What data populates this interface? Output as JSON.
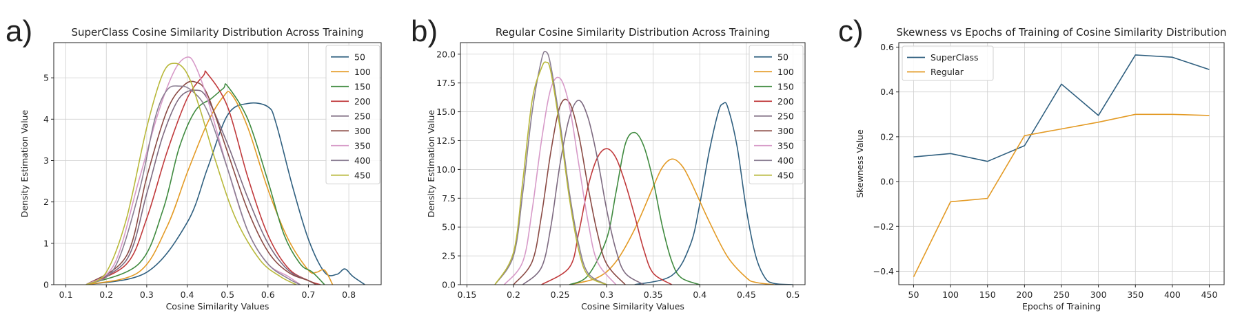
{
  "colors": {
    "c50": "#2f5f7f",
    "c100": "#e39a24",
    "c150": "#3f8a3f",
    "c200": "#c0393b",
    "c250": "#7d6a80",
    "c300": "#8a4a44",
    "c350": "#d79ac8",
    "c400": "#8a7e92",
    "c450": "#b8b83a"
  },
  "chart_data": [
    {
      "panel": "a)",
      "type": "line",
      "title": "SuperClass Cosine Similarity Distribution Across Training",
      "xlabel": "Cosine Similarity Values",
      "ylabel": "Density Estimation Value",
      "xlim": [
        0.07,
        0.88
      ],
      "ylim": [
        0,
        5.85
      ],
      "xticks": [
        0.1,
        0.2,
        0.3,
        0.4,
        0.5,
        0.6,
        0.7,
        0.8
      ],
      "yticks": [
        0,
        1,
        2,
        3,
        4,
        5
      ],
      "grid": true,
      "legend": "top-right",
      "series": [
        {
          "name": "50",
          "color_key": "c50",
          "x": [
            0.15,
            0.3,
            0.4,
            0.45,
            0.5,
            0.55,
            0.6,
            0.62,
            0.66,
            0.7,
            0.74,
            0.77,
            0.79,
            0.81,
            0.84
          ],
          "y": [
            0,
            0.3,
            1.5,
            2.8,
            4.1,
            4.38,
            4.3,
            3.9,
            2.4,
            1.1,
            0.3,
            0.25,
            0.38,
            0.2,
            0
          ]
        },
        {
          "name": "100",
          "color_key": "c100",
          "x": [
            0.15,
            0.28,
            0.35,
            0.4,
            0.45,
            0.49,
            0.51,
            0.55,
            0.6,
            0.65,
            0.7,
            0.72,
            0.74,
            0.76
          ],
          "y": [
            0,
            0.3,
            1.4,
            2.7,
            3.9,
            4.55,
            4.6,
            3.8,
            2.3,
            1.1,
            0.35,
            0.3,
            0.35,
            0
          ]
        },
        {
          "name": "150",
          "color_key": "c150",
          "x": [
            0.15,
            0.28,
            0.34,
            0.38,
            0.42,
            0.46,
            0.49,
            0.5,
            0.55,
            0.6,
            0.64,
            0.68,
            0.71,
            0.74
          ],
          "y": [
            0,
            0.5,
            1.8,
            3.3,
            4.2,
            4.5,
            4.75,
            4.8,
            4.0,
            2.5,
            1.2,
            0.5,
            0.3,
            0
          ]
        },
        {
          "name": "200",
          "color_key": "c200",
          "x": [
            0.15,
            0.25,
            0.3,
            0.35,
            0.4,
            0.44,
            0.45,
            0.5,
            0.55,
            0.6,
            0.65,
            0.7,
            0.73
          ],
          "y": [
            0,
            0.5,
            1.6,
            3.2,
            4.5,
            5.05,
            5.1,
            4.3,
            2.6,
            1.2,
            0.4,
            0.1,
            0
          ]
        },
        {
          "name": "250",
          "color_key": "c250",
          "x": [
            0.15,
            0.25,
            0.3,
            0.34,
            0.38,
            0.42,
            0.45,
            0.5,
            0.55,
            0.6,
            0.65,
            0.7,
            0.72
          ],
          "y": [
            0,
            0.6,
            2.2,
            3.6,
            4.5,
            4.7,
            4.5,
            3.4,
            2.1,
            1.0,
            0.35,
            0.1,
            0
          ]
        },
        {
          "name": "300",
          "color_key": "c300",
          "x": [
            0.15,
            0.25,
            0.3,
            0.35,
            0.39,
            0.42,
            0.45,
            0.5,
            0.55,
            0.6,
            0.65,
            0.7,
            0.72
          ],
          "y": [
            0,
            0.7,
            2.6,
            4.2,
            4.8,
            4.9,
            4.6,
            3.2,
            1.8,
            0.8,
            0.3,
            0.1,
            0
          ]
        },
        {
          "name": "350",
          "color_key": "c350",
          "x": [
            0.15,
            0.22,
            0.28,
            0.33,
            0.37,
            0.4,
            0.42,
            0.45,
            0.5,
            0.55,
            0.6,
            0.65,
            0.68
          ],
          "y": [
            0,
            0.5,
            2.5,
            4.2,
            5.2,
            5.5,
            5.3,
            4.5,
            2.8,
            1.3,
            0.5,
            0.2,
            0
          ]
        },
        {
          "name": "400",
          "color_key": "c400",
          "x": [
            0.15,
            0.22,
            0.28,
            0.32,
            0.35,
            0.38,
            0.41,
            0.45,
            0.5,
            0.55,
            0.6,
            0.65,
            0.68
          ],
          "y": [
            0,
            0.4,
            2.2,
            4.0,
            4.7,
            4.8,
            4.7,
            4.2,
            2.8,
            1.3,
            0.5,
            0.15,
            0
          ]
        },
        {
          "name": "450",
          "color_key": "c450",
          "x": [
            0.15,
            0.2,
            0.25,
            0.3,
            0.34,
            0.37,
            0.4,
            0.43,
            0.47,
            0.52,
            0.58,
            0.63,
            0.67
          ],
          "y": [
            0,
            0.3,
            1.6,
            3.8,
            5.1,
            5.35,
            5.1,
            4.3,
            3.0,
            1.6,
            0.6,
            0.2,
            0
          ]
        }
      ]
    },
    {
      "panel": "b)",
      "type": "line",
      "title": "Regular Cosine Similarity Distribution Across Training",
      "xlabel": "Cosine Similarity Values",
      "ylabel": "Density Estimation Value",
      "xlim": [
        0.143,
        0.513
      ],
      "ylim": [
        0,
        21
      ],
      "xticks": [
        0.15,
        0.2,
        0.25,
        0.3,
        0.35,
        0.4,
        0.45,
        0.5
      ],
      "yticks": [
        0.0,
        2.5,
        5.0,
        7.5,
        10.0,
        12.5,
        15.0,
        17.5,
        20.0
      ],
      "ytick_labels": [
        "0.0",
        "2.5",
        "5.0",
        "7.5",
        "10.0",
        "12.5",
        "15.0",
        "17.5",
        "20.0"
      ],
      "grid": true,
      "legend": "top-right",
      "series": [
        {
          "name": "50",
          "color_key": "c50",
          "x": [
            0.33,
            0.37,
            0.39,
            0.4,
            0.41,
            0.42,
            0.425,
            0.43,
            0.44,
            0.45,
            0.46,
            0.47,
            0.48,
            0.5
          ],
          "y": [
            0,
            0.8,
            3.5,
            7.0,
            11.5,
            15.0,
            15.7,
            15.4,
            12.0,
            6.5,
            2.5,
            0.6,
            0.1,
            0
          ]
        },
        {
          "name": "100",
          "color_key": "c100",
          "x": [
            0.26,
            0.29,
            0.31,
            0.33,
            0.35,
            0.36,
            0.37,
            0.38,
            0.39,
            0.41,
            0.43,
            0.45,
            0.46,
            0.48
          ],
          "y": [
            0,
            0.6,
            2.0,
            4.8,
            8.5,
            10.2,
            10.9,
            10.4,
            9.0,
            5.5,
            2.4,
            0.6,
            0.2,
            0
          ]
        },
        {
          "name": "150",
          "color_key": "c150",
          "x": [
            0.26,
            0.28,
            0.3,
            0.31,
            0.32,
            0.33,
            0.34,
            0.35,
            0.36,
            0.37,
            0.38,
            0.4
          ],
          "y": [
            0,
            0.8,
            4.0,
            8.0,
            12.2,
            13.2,
            12.0,
            9.0,
            5.0,
            2.0,
            0.6,
            0
          ]
        },
        {
          "name": "200",
          "color_key": "c200",
          "x": [
            0.23,
            0.26,
            0.27,
            0.28,
            0.29,
            0.3,
            0.31,
            0.32,
            0.33,
            0.34,
            0.35,
            0.37
          ],
          "y": [
            0,
            1.5,
            4.5,
            8.5,
            11.0,
            11.8,
            11.0,
            8.8,
            6.0,
            3.0,
            1.0,
            0
          ]
        },
        {
          "name": "250",
          "color_key": "c250",
          "x": [
            0.21,
            0.23,
            0.24,
            0.25,
            0.26,
            0.27,
            0.28,
            0.29,
            0.3,
            0.31,
            0.32,
            0.34
          ],
          "y": [
            0,
            1.5,
            5.0,
            10.5,
            14.5,
            16.0,
            14.5,
            11.0,
            6.5,
            3.0,
            1.0,
            0
          ]
        },
        {
          "name": "300",
          "color_key": "c300",
          "x": [
            0.2,
            0.22,
            0.23,
            0.24,
            0.25,
            0.26,
            0.27,
            0.28,
            0.29,
            0.3,
            0.32
          ],
          "y": [
            0,
            2.0,
            6.0,
            11.5,
            15.5,
            15.8,
            13.0,
            8.5,
            4.5,
            1.8,
            0
          ]
        },
        {
          "name": "350",
          "color_key": "c350",
          "x": [
            0.19,
            0.21,
            0.22,
            0.23,
            0.24,
            0.25,
            0.26,
            0.27,
            0.28,
            0.29,
            0.31
          ],
          "y": [
            0,
            2.0,
            6.5,
            12.5,
            17.0,
            17.9,
            15.5,
            10.5,
            5.5,
            2.0,
            0
          ]
        },
        {
          "name": "400",
          "color_key": "c400",
          "x": [
            0.18,
            0.2,
            0.21,
            0.22,
            0.23,
            0.235,
            0.24,
            0.25,
            0.26,
            0.27,
            0.28,
            0.3
          ],
          "y": [
            0,
            2.5,
            8.0,
            15.0,
            19.5,
            20.2,
            19.0,
            14.0,
            8.0,
            3.5,
            1.0,
            0
          ]
        },
        {
          "name": "450",
          "color_key": "c450",
          "x": [
            0.18,
            0.2,
            0.21,
            0.22,
            0.23,
            0.235,
            0.24,
            0.25,
            0.26,
            0.27,
            0.28,
            0.3
          ],
          "y": [
            0,
            2.8,
            9.0,
            16.0,
            18.8,
            19.3,
            18.5,
            13.5,
            7.5,
            3.0,
            0.8,
            0
          ]
        }
      ]
    },
    {
      "panel": "c)",
      "type": "line",
      "title": "Skewness vs Epochs of Training of Cosine Similarity Distribution",
      "xlabel": "Epochs of Training",
      "ylabel": "Skewness Value",
      "xlim": [
        30,
        470
      ],
      "ylim": [
        -0.46,
        0.62
      ],
      "xticks": [
        50,
        100,
        150,
        200,
        250,
        300,
        350,
        400,
        450
      ],
      "yticks": [
        -0.4,
        -0.2,
        0.0,
        0.2,
        0.4,
        0.6
      ],
      "ytick_labels": [
        "−0.4",
        "−0.2",
        "0.0",
        "0.2",
        "0.4",
        "0.6"
      ],
      "grid": true,
      "legend": "top-left",
      "series": [
        {
          "name": "SuperClass",
          "color_key": "c50",
          "x": [
            50,
            100,
            150,
            200,
            250,
            300,
            350,
            400,
            450
          ],
          "y": [
            0.11,
            0.125,
            0.09,
            0.16,
            0.435,
            0.295,
            0.565,
            0.555,
            0.5
          ]
        },
        {
          "name": "Regular",
          "color_key": "c100",
          "x": [
            50,
            100,
            150,
            200,
            250,
            300,
            350,
            400,
            450
          ],
          "y": [
            -0.425,
            -0.09,
            -0.075,
            0.205,
            0.235,
            0.265,
            0.3,
            0.3,
            0.295
          ]
        }
      ]
    }
  ]
}
